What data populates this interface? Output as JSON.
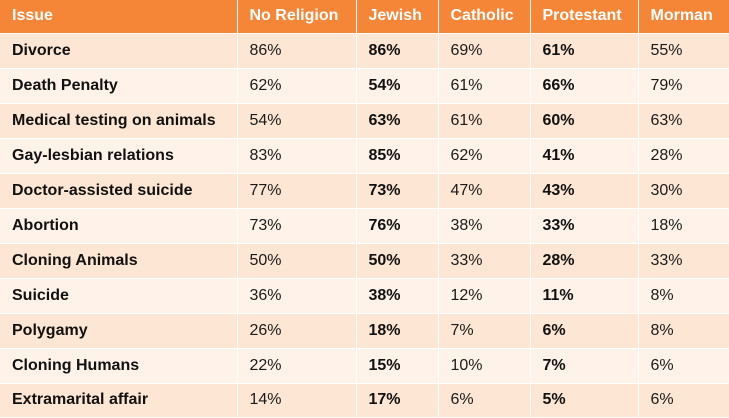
{
  "chart_data": {
    "type": "table",
    "columns": [
      "Issue",
      "No Religion",
      "Jewish",
      "Catholic",
      "Protestant",
      "Morman"
    ],
    "bold_columns": [
      2,
      4
    ],
    "rows": [
      [
        "Divorce",
        "86%",
        "86%",
        "69%",
        "61%",
        "55%"
      ],
      [
        "Death Penalty",
        "62%",
        "54%",
        "61%",
        "66%",
        "79%"
      ],
      [
        "Medical testing on animals",
        "54%",
        "63%",
        "61%",
        "60%",
        "63%"
      ],
      [
        "Gay-lesbian relations",
        "83%",
        "85%",
        "62%",
        "41%",
        "28%"
      ],
      [
        "Doctor-assisted suicide",
        "77%",
        "73%",
        "47%",
        "43%",
        "30%"
      ],
      [
        "Abortion",
        "73%",
        "76%",
        "38%",
        "33%",
        "18%"
      ],
      [
        "Cloning Animals",
        "50%",
        "50%",
        "33%",
        "28%",
        "33%"
      ],
      [
        "Suicide",
        "36%",
        "38%",
        "12%",
        "11%",
        "8%"
      ],
      [
        "Polygamy",
        "26%",
        "18%",
        "7%",
        "6%",
        "8%"
      ],
      [
        "Cloning Humans",
        "22%",
        "15%",
        "10%",
        "7%",
        "6%"
      ],
      [
        "Extramarital affair",
        "14%",
        "17%",
        "6%",
        "5%",
        "6%"
      ]
    ]
  },
  "colors": {
    "header_bg": "#f58537",
    "header_text": "#ffffff",
    "row_odd_bg": "#fde6d3",
    "row_even_bg": "#fff3e9"
  }
}
